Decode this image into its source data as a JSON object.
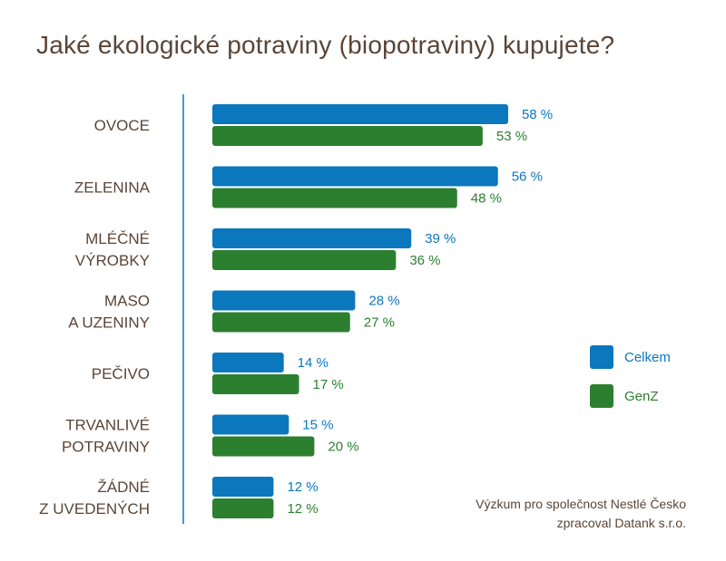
{
  "chart_data": {
    "type": "bar",
    "orientation": "horizontal",
    "title": "Jaké ekologické potraviny (biopotraviny) kupujete?",
    "categories": [
      [
        "OVOCE"
      ],
      [
        "ZELENINA"
      ],
      [
        "MLÉČNÉ",
        "VÝROBKY"
      ],
      [
        "MASO",
        "A UZENINY"
      ],
      [
        "PEČIVO"
      ],
      [
        "TRVANLIVÉ",
        "POTRAVINY"
      ],
      [
        "ŽÁDNÉ",
        "Z UVEDENÝCH"
      ]
    ],
    "series": [
      {
        "name": "Celkem",
        "color": "#0b77bd",
        "values": [
          58,
          56,
          39,
          28,
          14,
          15,
          12
        ]
      },
      {
        "name": "GenZ",
        "color": "#2c7f2f",
        "values": [
          53,
          48,
          36,
          27,
          17,
          20,
          12
        ]
      }
    ],
    "value_suffix": " %",
    "xlim": [
      0,
      100
    ],
    "grid": false,
    "legend_position": "right"
  },
  "source_note": {
    "line1": "Výzkum pro společnost Nestlé Česko",
    "line2": "zpracoval Datank s.r.o."
  }
}
